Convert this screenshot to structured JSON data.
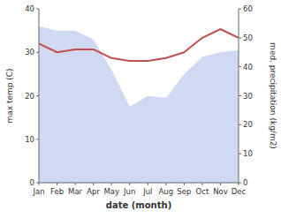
{
  "chart_data": {
    "type": "line",
    "categories": [
      "Jan",
      "Feb",
      "Mar",
      "Apr",
      "May",
      "Jun",
      "Jul",
      "Aug",
      "Sep",
      "Oct",
      "Nov",
      "Dec"
    ],
    "xlabel": "date (month)",
    "ylabel": "max temp (C)",
    "y2label": "med. precipitation (kg/m2)",
    "ylim": [
      0,
      40
    ],
    "yticks": [
      0,
      10,
      20,
      30,
      40
    ],
    "y2lim": [
      0,
      60
    ],
    "y2ticks": [
      0,
      10,
      20,
      30,
      40,
      50,
      60
    ],
    "grid": false,
    "series": [
      {
        "type": "area",
        "color": "#aab8e8",
        "values": [
          36,
          35,
          35,
          33,
          26,
          17.5,
          20,
          19.5,
          25,
          29,
          30,
          30.5
        ]
      },
      {
        "type": "line",
        "color": "#c0504d",
        "axis": "y2",
        "values": [
          48,
          45,
          46,
          46,
          43,
          42,
          42,
          43,
          45,
          50,
          53,
          50
        ]
      }
    ]
  }
}
